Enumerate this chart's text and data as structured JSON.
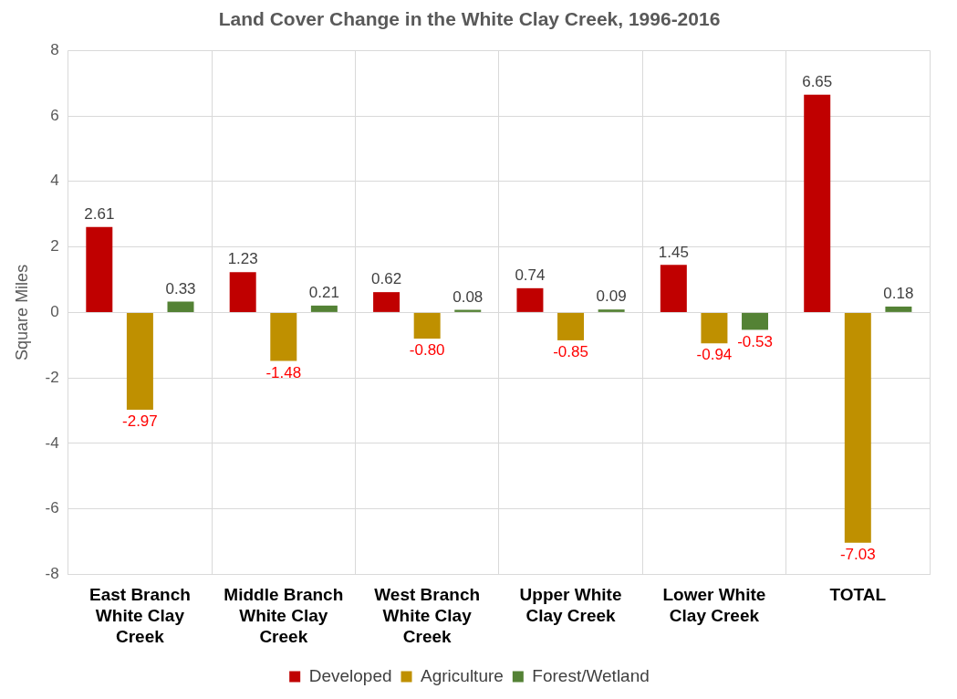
{
  "chart_data": {
    "type": "bar",
    "title": "Land Cover Change in the White Clay Creek, 1996-2016",
    "ylabel": "Square Miles",
    "categories": [
      "East Branch White Clay Creek",
      "Middle Branch White Clay Creek",
      "West Branch White Clay Creek",
      "Upper White Clay Creek",
      "Lower White Clay Creek",
      "TOTAL"
    ],
    "series": [
      {
        "name": "Developed",
        "color": "#c00000",
        "values": [
          2.61,
          1.23,
          0.62,
          0.74,
          1.45,
          6.65
        ],
        "value_labels": [
          "2.61",
          "1.23",
          "0.62",
          "0.74",
          "1.45",
          "6.65"
        ]
      },
      {
        "name": "Agriculture",
        "color": "#bf9000",
        "values": [
          -2.97,
          -1.48,
          -0.8,
          -0.85,
          -0.94,
          -7.03
        ],
        "value_labels": [
          "-2.97",
          "-1.48",
          "-0.80",
          "-0.85",
          "-0.94",
          "-7.03"
        ]
      },
      {
        "name": "Forest/Wetland",
        "color": "#548235",
        "values": [
          0.33,
          0.21,
          0.08,
          0.09,
          -0.53,
          0.18
        ],
        "value_labels": [
          "0.33",
          "0.21",
          "0.08",
          "0.09",
          "-0.53",
          "0.18"
        ]
      }
    ],
    "ylim": [
      -8,
      8
    ],
    "yticks": [
      -8,
      -6,
      -4,
      -2,
      0,
      2,
      4,
      6,
      8
    ],
    "grid": true,
    "legend": "bottom"
  }
}
